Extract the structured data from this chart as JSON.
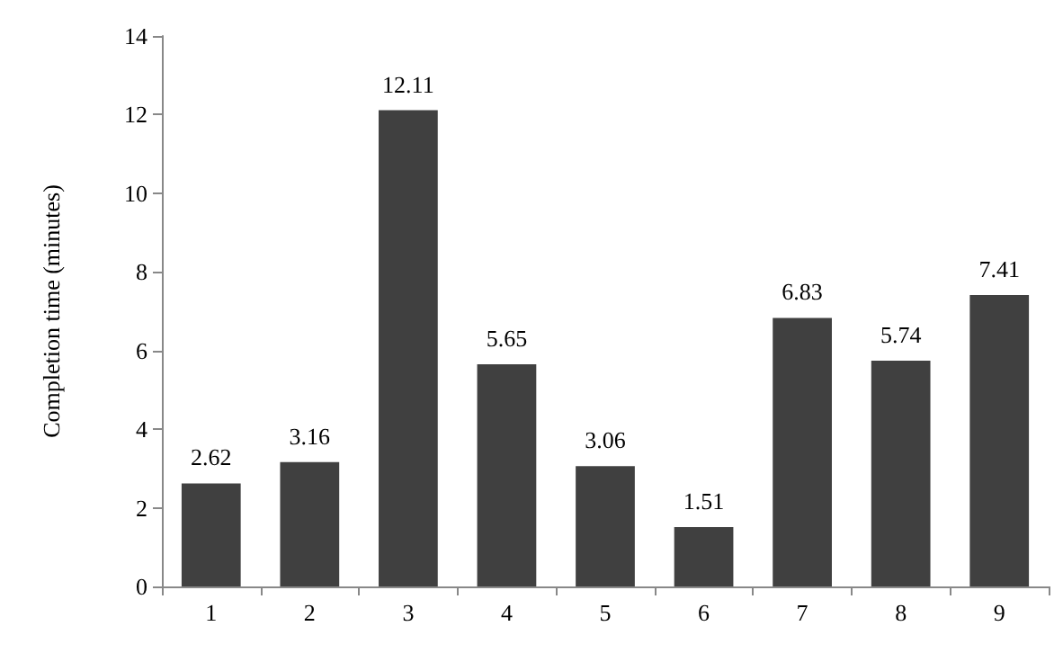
{
  "chart_data": {
    "type": "bar",
    "ylabel": "Completion time (minutes)",
    "categories": [
      "1",
      "2",
      "3",
      "4",
      "5",
      "6",
      "7",
      "8",
      "9"
    ],
    "values": [
      2.62,
      3.16,
      12.11,
      5.65,
      3.06,
      1.51,
      6.83,
      5.74,
      7.41
    ],
    "color": "#404040",
    "ylim": [
      0,
      14
    ],
    "yticks": [
      0,
      2,
      4,
      6,
      8,
      10,
      12,
      14
    ],
    "grid": false,
    "data_labels": true
  }
}
